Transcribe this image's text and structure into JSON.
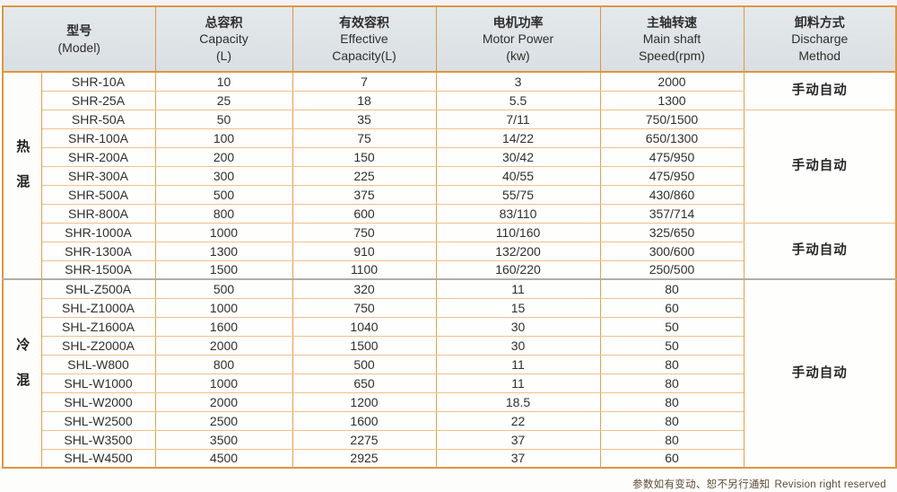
{
  "table": {
    "header": {
      "model": {
        "l1": "型号",
        "l2": "(Model)"
      },
      "capacity": {
        "l1": "总容积",
        "l2": "Capacity",
        "l3": "(L)"
      },
      "effective": {
        "l1": "有效容积",
        "l2": "Effective",
        "l3": "Capacity(L)"
      },
      "power": {
        "l1": "电机功率",
        "l2": "Motor Power",
        "l3": "(kw)"
      },
      "speed": {
        "l1": "主轴转速",
        "l2": "Main shaft",
        "l3": "Speed(rpm)"
      },
      "discharge": {
        "l1": "卸料方式",
        "l2": "Discharge",
        "l3": "Method"
      }
    },
    "sections": [
      {
        "label": "热混"
      },
      {
        "label": "冷混"
      }
    ],
    "discharge_groups": [
      {
        "label": "手动自动"
      },
      {
        "label": "手动自动"
      },
      {
        "label": "手动自动"
      },
      {
        "label": "手动自动"
      }
    ],
    "rows": [
      {
        "model": "SHR-10A",
        "capacity": "10",
        "effective": "7",
        "power": "3",
        "speed": "2000"
      },
      {
        "model": "SHR-25A",
        "capacity": "25",
        "effective": "18",
        "power": "5.5",
        "speed": "1300"
      },
      {
        "model": "SHR-50A",
        "capacity": "50",
        "effective": "35",
        "power": "7/11",
        "speed": "750/1500"
      },
      {
        "model": "SHR-100A",
        "capacity": "100",
        "effective": "75",
        "power": "14/22",
        "speed": "650/1300"
      },
      {
        "model": "SHR-200A",
        "capacity": "200",
        "effective": "150",
        "power": "30/42",
        "speed": "475/950"
      },
      {
        "model": "SHR-300A",
        "capacity": "300",
        "effective": "225",
        "power": "40/55",
        "speed": "475/950"
      },
      {
        "model": "SHR-500A",
        "capacity": "500",
        "effective": "375",
        "power": "55/75",
        "speed": "430/860"
      },
      {
        "model": "SHR-800A",
        "capacity": "800",
        "effective": "600",
        "power": "83/110",
        "speed": "357/714"
      },
      {
        "model": "SHR-1000A",
        "capacity": "1000",
        "effective": "750",
        "power": "110/160",
        "speed": "325/650"
      },
      {
        "model": "SHR-1300A",
        "capacity": "1300",
        "effective": "910",
        "power": "132/200",
        "speed": "300/600"
      },
      {
        "model": "SHR-1500A",
        "capacity": "1500",
        "effective": "1100",
        "power": "160/220",
        "speed": "250/500"
      },
      {
        "model": "SHL-Z500A",
        "capacity": "500",
        "effective": "320",
        "power": "11",
        "speed": "80"
      },
      {
        "model": "SHL-Z1000A",
        "capacity": "1000",
        "effective": "750",
        "power": "15",
        "speed": "60"
      },
      {
        "model": "SHL-Z1600A",
        "capacity": "1600",
        "effective": "1040",
        "power": "30",
        "speed": "50"
      },
      {
        "model": "SHL-Z2000A",
        "capacity": "2000",
        "effective": "1500",
        "power": "30",
        "speed": "50"
      },
      {
        "model": "SHL-W800",
        "capacity": "800",
        "effective": "500",
        "power": "11",
        "speed": "80"
      },
      {
        "model": "SHL-W1000",
        "capacity": "1000",
        "effective": "650",
        "power": "11",
        "speed": "80"
      },
      {
        "model": "SHL-W2000",
        "capacity": "2000",
        "effective": "1200",
        "power": "18.5",
        "speed": "80"
      },
      {
        "model": "SHL-W2500",
        "capacity": "2500",
        "effective": "1600",
        "power": "22",
        "speed": "80"
      },
      {
        "model": "SHL-W3500",
        "capacity": "3500",
        "effective": "2275",
        "power": "37",
        "speed": "80"
      },
      {
        "model": "SHL-W4500",
        "capacity": "4500",
        "effective": "2925",
        "power": "37",
        "speed": "60"
      }
    ]
  },
  "footer": {
    "note_cn": "参数如有变动、恕不另行通知",
    "note_en": "Revision right reserved"
  },
  "colors": {
    "border_orange": "#dd9642",
    "row_line_orange": "#efc189",
    "header_bg": "#dde3e6",
    "footnote_text": "#5c4a36"
  }
}
